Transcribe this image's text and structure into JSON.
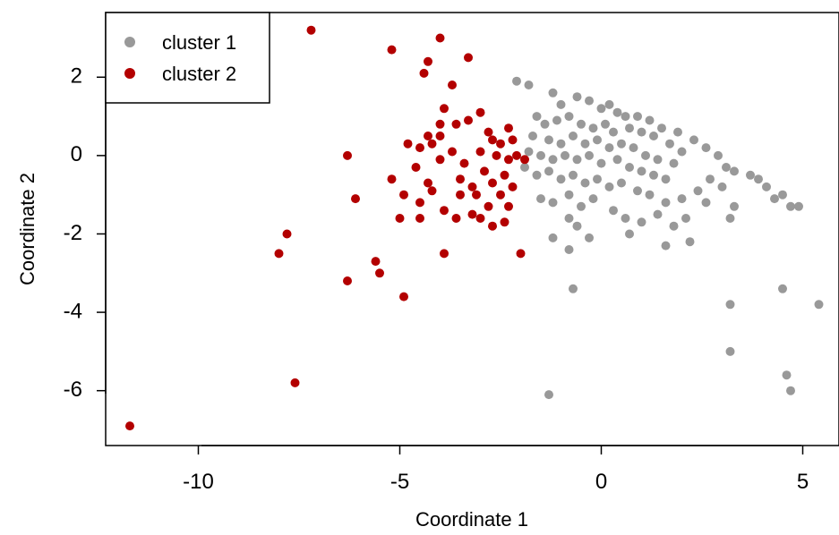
{
  "chart_data": {
    "type": "scatter",
    "xlabel": "Coordinate 1",
    "ylabel": "Coordinate 2",
    "xlim": [
      -12.3,
      5.9
    ],
    "ylim": [
      -7.4,
      3.65
    ],
    "xticks": [
      -10,
      -5,
      0,
      5
    ],
    "yticks": [
      2,
      0,
      -2,
      -4,
      -6
    ],
    "xtick_labels": [
      "-10",
      "-5",
      "0",
      "5"
    ],
    "ytick_labels": [
      "2",
      "0",
      "-2",
      "-4",
      "-6"
    ],
    "grid": false,
    "legend_position": "top-left",
    "series": [
      {
        "name": "cluster 1",
        "color": "#999999",
        "points": [
          [
            -2.1,
            1.9
          ],
          [
            -1.8,
            1.8
          ],
          [
            -1.2,
            1.6
          ],
          [
            -1.0,
            1.3
          ],
          [
            -0.6,
            1.5
          ],
          [
            -0.3,
            1.4
          ],
          [
            0.0,
            1.2
          ],
          [
            0.2,
            1.3
          ],
          [
            0.4,
            1.1
          ],
          [
            0.6,
            1.0
          ],
          [
            0.9,
            1.0
          ],
          [
            1.2,
            0.9
          ],
          [
            1.5,
            0.7
          ],
          [
            1.9,
            0.6
          ],
          [
            2.3,
            0.4
          ],
          [
            2.6,
            0.2
          ],
          [
            2.9,
            0.0
          ],
          [
            3.1,
            -0.3
          ],
          [
            3.3,
            -0.4
          ],
          [
            3.7,
            -0.5
          ],
          [
            3.9,
            -0.6
          ],
          [
            4.1,
            -0.8
          ],
          [
            4.5,
            -1.0
          ],
          [
            4.7,
            -1.3
          ],
          [
            4.9,
            -1.3
          ],
          [
            4.3,
            -1.1
          ],
          [
            -1.6,
            1.0
          ],
          [
            -1.4,
            0.8
          ],
          [
            -1.1,
            0.9
          ],
          [
            -0.8,
            1.0
          ],
          [
            -0.5,
            0.8
          ],
          [
            -0.2,
            0.7
          ],
          [
            0.1,
            0.8
          ],
          [
            0.3,
            0.6
          ],
          [
            0.7,
            0.7
          ],
          [
            1.0,
            0.6
          ],
          [
            1.3,
            0.5
          ],
          [
            1.7,
            0.3
          ],
          [
            2.0,
            0.1
          ],
          [
            -1.7,
            0.5
          ],
          [
            -1.3,
            0.4
          ],
          [
            -1.0,
            0.3
          ],
          [
            -0.7,
            0.5
          ],
          [
            -0.4,
            0.3
          ],
          [
            -0.1,
            0.4
          ],
          [
            0.2,
            0.2
          ],
          [
            0.5,
            0.3
          ],
          [
            0.8,
            0.2
          ],
          [
            1.1,
            0.0
          ],
          [
            1.4,
            -0.1
          ],
          [
            1.8,
            -0.2
          ],
          [
            -1.8,
            0.1
          ],
          [
            -1.5,
            0.0
          ],
          [
            -1.2,
            -0.1
          ],
          [
            -0.9,
            0.0
          ],
          [
            -0.6,
            -0.1
          ],
          [
            -0.3,
            0.0
          ],
          [
            0.0,
            -0.2
          ],
          [
            0.4,
            -0.1
          ],
          [
            0.7,
            -0.3
          ],
          [
            1.0,
            -0.4
          ],
          [
            1.3,
            -0.5
          ],
          [
            1.6,
            -0.6
          ],
          [
            -1.9,
            -0.3
          ],
          [
            -1.6,
            -0.5
          ],
          [
            -1.3,
            -0.4
          ],
          [
            -1.0,
            -0.6
          ],
          [
            -0.7,
            -0.5
          ],
          [
            -0.4,
            -0.7
          ],
          [
            -0.1,
            -0.6
          ],
          [
            0.2,
            -0.8
          ],
          [
            0.5,
            -0.7
          ],
          [
            0.9,
            -0.9
          ],
          [
            1.2,
            -1.0
          ],
          [
            1.6,
            -1.2
          ],
          [
            2.0,
            -1.1
          ],
          [
            2.4,
            -0.9
          ],
          [
            2.6,
            -1.2
          ],
          [
            -1.5,
            -1.1
          ],
          [
            -1.2,
            -1.2
          ],
          [
            -0.8,
            -1.0
          ],
          [
            -0.5,
            -1.3
          ],
          [
            -0.2,
            -1.1
          ],
          [
            0.3,
            -1.4
          ],
          [
            0.6,
            -1.6
          ],
          [
            1.0,
            -1.7
          ],
          [
            1.4,
            -1.5
          ],
          [
            1.8,
            -1.8
          ],
          [
            2.1,
            -1.6
          ],
          [
            2.2,
            -2.2
          ],
          [
            1.6,
            -2.3
          ],
          [
            0.7,
            -2.0
          ],
          [
            -0.3,
            -2.1
          ],
          [
            -0.6,
            -1.8
          ],
          [
            -1.2,
            -2.1
          ],
          [
            -0.8,
            -1.6
          ],
          [
            -0.8,
            -2.4
          ],
          [
            -0.7,
            -3.4
          ],
          [
            3.2,
            -1.6
          ],
          [
            3.3,
            -1.3
          ],
          [
            3.0,
            -0.8
          ],
          [
            2.7,
            -0.6
          ],
          [
            3.2,
            -3.8
          ],
          [
            3.2,
            -5.0
          ],
          [
            4.5,
            -3.4
          ],
          [
            5.4,
            -3.8
          ],
          [
            4.6,
            -5.6
          ],
          [
            4.7,
            -6.0
          ],
          [
            -1.3,
            -6.1
          ]
        ]
      },
      {
        "name": "cluster 2",
        "color": "#b30000",
        "points": [
          [
            -7.2,
            3.2
          ],
          [
            -4.0,
            3.0
          ],
          [
            -5.2,
            2.7
          ],
          [
            -3.3,
            2.5
          ],
          [
            -4.3,
            2.4
          ],
          [
            -4.4,
            2.1
          ],
          [
            -3.7,
            1.8
          ],
          [
            -3.9,
            1.2
          ],
          [
            -3.0,
            1.1
          ],
          [
            -4.0,
            0.8
          ],
          [
            -3.6,
            0.8
          ],
          [
            -3.3,
            0.9
          ],
          [
            -2.8,
            0.6
          ],
          [
            -2.3,
            0.7
          ],
          [
            -4.3,
            0.5
          ],
          [
            -4.0,
            0.5
          ],
          [
            -4.8,
            0.3
          ],
          [
            -4.5,
            0.2
          ],
          [
            -4.2,
            0.3
          ],
          [
            -3.7,
            0.1
          ],
          [
            -3.0,
            0.1
          ],
          [
            -2.7,
            0.4
          ],
          [
            -2.5,
            0.3
          ],
          [
            -2.2,
            0.4
          ],
          [
            -6.3,
            0.0
          ],
          [
            -4.6,
            -0.3
          ],
          [
            -4.0,
            -0.1
          ],
          [
            -3.4,
            -0.2
          ],
          [
            -2.9,
            -0.4
          ],
          [
            -2.6,
            0.0
          ],
          [
            -2.3,
            -0.1
          ],
          [
            -2.1,
            0.0
          ],
          [
            -1.9,
            -0.1
          ],
          [
            -5.2,
            -0.6
          ],
          [
            -4.3,
            -0.7
          ],
          [
            -3.5,
            -0.6
          ],
          [
            -3.2,
            -0.8
          ],
          [
            -2.7,
            -0.7
          ],
          [
            -2.4,
            -0.5
          ],
          [
            -2.2,
            -0.8
          ],
          [
            -4.9,
            -1.0
          ],
          [
            -4.2,
            -0.9
          ],
          [
            -3.5,
            -1.0
          ],
          [
            -3.1,
            -1.0
          ],
          [
            -2.5,
            -1.0
          ],
          [
            -6.1,
            -1.1
          ],
          [
            -4.5,
            -1.2
          ],
          [
            -3.9,
            -1.4
          ],
          [
            -3.2,
            -1.5
          ],
          [
            -2.8,
            -1.3
          ],
          [
            -2.3,
            -1.3
          ],
          [
            -5.0,
            -1.6
          ],
          [
            -4.5,
            -1.6
          ],
          [
            -3.6,
            -1.6
          ],
          [
            -3.0,
            -1.6
          ],
          [
            -2.7,
            -1.8
          ],
          [
            -2.4,
            -1.7
          ],
          [
            -7.8,
            -2.0
          ],
          [
            -8.0,
            -2.5
          ],
          [
            -3.9,
            -2.5
          ],
          [
            -2.0,
            -2.5
          ],
          [
            -5.6,
            -2.7
          ],
          [
            -5.5,
            -3.0
          ],
          [
            -6.3,
            -3.2
          ],
          [
            -4.9,
            -3.6
          ],
          [
            -7.6,
            -5.8
          ],
          [
            -11.7,
            -6.9
          ]
        ]
      }
    ]
  }
}
